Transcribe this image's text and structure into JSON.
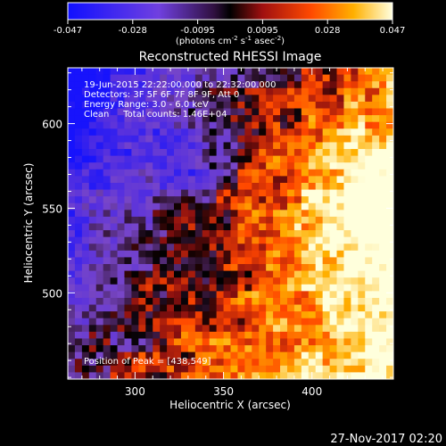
{
  "colorbar": {
    "ticks": [
      "-0.047",
      "-0.028",
      "-0.0095",
      "0.0095",
      "0.028",
      "0.047"
    ],
    "units_prefix": "(photons cm",
    "units_exp1": "-2",
    "units_mid": " s",
    "units_exp2": "-1",
    "units_mid2": " asec",
    "units_exp3": "-2",
    "units_suffix": ")"
  },
  "chart_data": {
    "type": "heatmap",
    "title": "Reconstructed RHESSI Image",
    "xlabel": "Heliocentric X (arcsec)",
    "ylabel": "Heliocentric Y (arcsec)",
    "xlim": [
      262,
      446
    ],
    "ylim": [
      449,
      633
    ],
    "x_ticks": [
      300,
      350,
      400
    ],
    "y_ticks": [
      500,
      550,
      600
    ],
    "x_tick_labels": [
      "300",
      "350",
      "400"
    ],
    "y_tick_labels": [
      "500",
      "550",
      "600"
    ],
    "colorbar_range": [
      -0.047,
      0.047
    ],
    "annotations": [
      "19-Jun-2015 22:22:00.000 to 22:32:00.000",
      "Detectors: 3F 5F 6F 7F 8F 9F, Att 0",
      "Energy Range: 3.0 - 6.0 keV",
      "Clean     Total counts: 1.46E+04"
    ],
    "peak_label": "Position of Peak = [438,549]",
    "peak": [
      438,
      549
    ]
  },
  "footer": {
    "timestamp": "27-Nov-2017 02:20"
  }
}
